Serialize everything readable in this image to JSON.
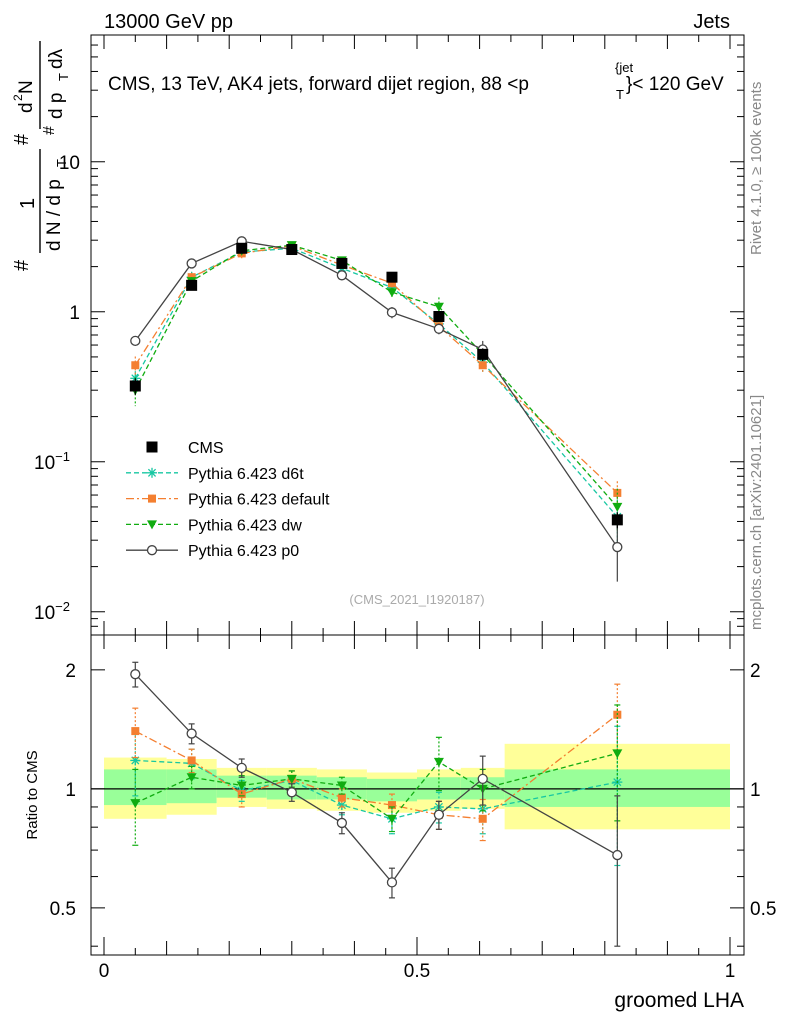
{
  "header": {
    "energy_label": "13000 GeV pp",
    "category_label": "Jets",
    "plot_title": "CMS, 13 TeV, AK4 jets, forward dijet region, 88 <p",
    "title_sup": "{jet",
    "title_sub": "T",
    "title_tail": "}< 120 GeV",
    "rivet_label": "Rivet 4.1.0, ≥ 100k events",
    "mcplots_label": "mcplots.cern.ch [arXiv:2401.10621]",
    "analysis_id": "(CMS_2021_I1920187)"
  },
  "y_axis_main": {
    "label_parts": [
      "1",
      "d N / d p",
      "T",
      "#",
      "d",
      "2",
      "N",
      "d p",
      "T",
      "dλ",
      "#",
      "#"
    ],
    "ticks": [
      {
        "value": 10,
        "base": "10",
        "exp": ""
      },
      {
        "value": 1,
        "base": "1",
        "exp": ""
      },
      {
        "value": 0.1,
        "base": "10",
        "exp": "−1"
      },
      {
        "value": 0.01,
        "base": "10",
        "exp": "−2"
      }
    ]
  },
  "y_axis_ratio": {
    "label": "Ratio to CMS",
    "ticks": [
      "2",
      "1",
      "0.5"
    ]
  },
  "x_axis": {
    "label": "groomed LHA",
    "ticks": [
      "0",
      "0.5",
      "1"
    ]
  },
  "legend": [
    {
      "key": "cms",
      "label": "CMS"
    },
    {
      "key": "d6t",
      "label": "Pythia 6.423 d6t"
    },
    {
      "key": "def",
      "label": "Pythia 6.423 default"
    },
    {
      "key": "dw",
      "label": "Pythia 6.423 dw"
    },
    {
      "key": "p0",
      "label": "Pythia 6.423 p0"
    }
  ],
  "colors": {
    "cms": "#000000",
    "d6t": "#17c7a2",
    "def": "#f47f30",
    "dw": "#10ac10",
    "p0": "#444444",
    "band_outer": "#ffff99",
    "band_inner": "#99ff99"
  },
  "chart_data": {
    "type": "scatter",
    "xlabel": "groomed LHA",
    "ylabel": "1/(dN/dpT) d2N/(dpT dλ)",
    "xlim": [
      0,
      1
    ],
    "ylim_main": [
      0.007,
      70
    ],
    "ylog": true,
    "ylim_ratio": [
      0.38,
      2.45
    ],
    "bins": [
      {
        "lo": 0.0,
        "hi": 0.1
      },
      {
        "lo": 0.1,
        "hi": 0.18
      },
      {
        "lo": 0.18,
        "hi": 0.26
      },
      {
        "lo": 0.26,
        "hi": 0.34
      },
      {
        "lo": 0.34,
        "hi": 0.42
      },
      {
        "lo": 0.42,
        "hi": 0.5
      },
      {
        "lo": 0.5,
        "hi": 0.57
      },
      {
        "lo": 0.57,
        "hi": 0.64
      },
      {
        "lo": 0.64,
        "hi": 1.0
      }
    ],
    "data": {
      "name": "CMS",
      "x": [
        0.05,
        0.14,
        0.22,
        0.3,
        0.38,
        0.46,
        0.535,
        0.605,
        0.82
      ],
      "y": [
        0.32,
        1.5,
        2.65,
        2.6,
        2.1,
        1.7,
        0.93,
        0.52,
        0.041
      ],
      "stat_err": [
        0.04,
        0.08,
        0.1,
        0.1,
        0.1,
        0.1,
        0.07,
        0.05,
        0.005
      ],
      "band_outer": [
        [
          0.84,
          1.2
        ],
        [
          0.86,
          1.19
        ],
        [
          0.9,
          1.13
        ],
        [
          0.89,
          1.13
        ],
        [
          0.88,
          1.12
        ],
        [
          0.87,
          1.1
        ],
        [
          0.88,
          1.12
        ],
        [
          0.89,
          1.13
        ],
        [
          0.79,
          1.3
        ]
      ],
      "band_inner": [
        [
          0.91,
          1.12
        ],
        [
          0.92,
          1.12
        ],
        [
          0.95,
          1.08
        ],
        [
          0.94,
          1.08
        ],
        [
          0.94,
          1.07
        ],
        [
          0.93,
          1.06
        ],
        [
          0.94,
          1.07
        ],
        [
          0.94,
          1.07
        ],
        [
          0.9,
          1.12
        ]
      ]
    },
    "series": [
      {
        "key": "d6t",
        "name": "Pythia 6.423 d6t",
        "marker": "asterisk",
        "dash": "5,3",
        "y": [
          0.36,
          1.7,
          2.5,
          2.65,
          1.95,
          1.45,
          0.83,
          0.46,
          0.043
        ],
        "ratio": [
          1.18,
          1.16,
          0.99,
          1.05,
          0.91,
          0.84,
          0.9,
          0.89,
          1.04
        ],
        "ratio_err": [
          0.22,
          0.1,
          0.06,
          0.06,
          0.05,
          0.07,
          0.08,
          0.12,
          0.4
        ]
      },
      {
        "key": "def",
        "name": "Pythia 6.423 default",
        "marker": "square",
        "dash": "8,3,2,3",
        "y": [
          0.44,
          1.7,
          2.45,
          2.75,
          2.05,
          1.55,
          0.8,
          0.44,
          0.062
        ],
        "ratio": [
          1.4,
          1.18,
          0.97,
          1.06,
          0.95,
          0.91,
          0.86,
          0.84,
          1.54
        ],
        "ratio_err": [
          0.2,
          0.08,
          0.07,
          0.05,
          0.05,
          0.06,
          0.07,
          0.1,
          0.3
        ]
      },
      {
        "key": "dw",
        "name": "Pythia 6.423 dw",
        "marker": "triangle-down",
        "dash": "5,3",
        "y": [
          0.3,
          1.6,
          2.55,
          2.78,
          2.2,
          1.35,
          1.08,
          0.52,
          0.05
        ],
        "ratio": [
          0.92,
          1.07,
          1.02,
          1.06,
          1.02,
          0.84,
          1.17,
          1.0,
          1.23
        ],
        "ratio_err": [
          0.2,
          0.07,
          0.06,
          0.05,
          0.05,
          0.06,
          0.18,
          0.12,
          0.4
        ]
      },
      {
        "key": "p0",
        "name": "Pythia 6.423 p0",
        "marker": "circle-open",
        "dash": "",
        "y": [
          0.64,
          2.1,
          2.95,
          2.6,
          1.75,
          0.99,
          0.77,
          0.56,
          0.027
        ],
        "ratio": [
          1.95,
          1.38,
          1.13,
          0.98,
          0.82,
          0.58,
          0.86,
          1.06,
          0.68
        ],
        "ratio_err": [
          0.14,
          0.08,
          0.06,
          0.05,
          0.05,
          0.05,
          0.07,
          0.15,
          0.28
        ]
      }
    ]
  }
}
